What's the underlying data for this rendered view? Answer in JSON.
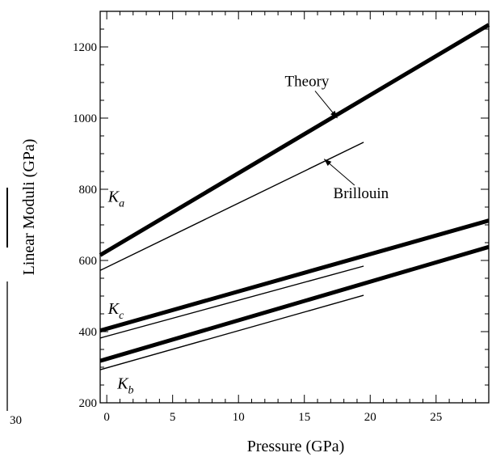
{
  "chart_data": {
    "type": "line",
    "xlabel": "Pressure (GPa)",
    "ylabel": "Linear Moduli (GPa)",
    "xlim": [
      -0.5,
      29
    ],
    "ylim": [
      200,
      1300
    ],
    "x_ticks": [
      0,
      5,
      10,
      15,
      20,
      25
    ],
    "x_tick_labels": [
      "0",
      "5",
      "10",
      "15",
      "20",
      "25"
    ],
    "y_ticks": [
      200,
      400,
      600,
      800,
      1000,
      1200
    ],
    "y_tick_labels": [
      "200",
      "400",
      "600",
      "800",
      "1000",
      "1200"
    ],
    "left_edge_label": "30",
    "grid": false,
    "series": [
      {
        "name": "K_a theory",
        "kind": "theory",
        "x": [
          -0.5,
          29
        ],
        "y": [
          615,
          1262
        ]
      },
      {
        "name": "K_a Brillouin",
        "kind": "brillouin",
        "x": [
          -0.5,
          19.5
        ],
        "y": [
          572,
          932
        ]
      },
      {
        "name": "K_c theory",
        "kind": "theory",
        "x": [
          -0.5,
          29
        ],
        "y": [
          403,
          712
        ]
      },
      {
        "name": "K_c Brillouin",
        "kind": "brillouin",
        "x": [
          -0.5,
          19.5
        ],
        "y": [
          382,
          584
        ]
      },
      {
        "name": "K_b theory",
        "kind": "theory",
        "x": [
          -0.5,
          29
        ],
        "y": [
          318,
          638
        ]
      },
      {
        "name": "K_b Brillouin",
        "kind": "brillouin",
        "x": [
          -0.5,
          19.5
        ],
        "y": [
          293,
          502
        ]
      }
    ],
    "annotations": [
      {
        "id": "theory",
        "text": "Theory",
        "x": 15.2,
        "y": 1090,
        "arrow_to": [
          17.5,
          1000
        ]
      },
      {
        "id": "brillouin",
        "text": "Brillouin",
        "x": 19.3,
        "y": 775,
        "arrow_to": [
          16.5,
          885
        ]
      }
    ],
    "curve_labels": [
      {
        "id": "ka",
        "main": "K",
        "sub": "a",
        "x": 0.1,
        "y": 765
      },
      {
        "id": "kc",
        "main": "K",
        "sub": "c",
        "x": 0.1,
        "y": 450
      },
      {
        "id": "kb",
        "main": "K",
        "sub": "b",
        "x": 0.8,
        "y": 240
      }
    ]
  }
}
